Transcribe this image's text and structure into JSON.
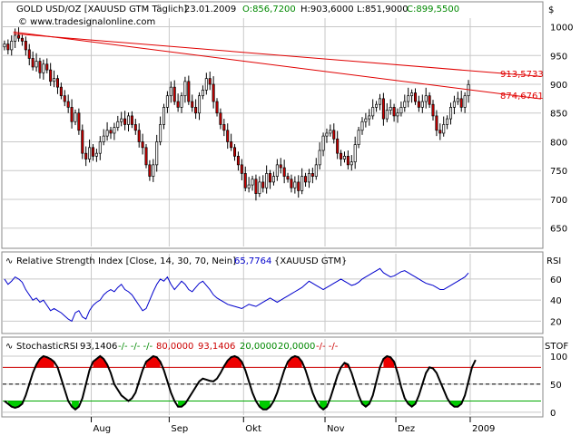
{
  "header": {
    "symbol": "GOLD USD/OZ [XAUUSD GTM  Täglich]",
    "date": "23.01.2009",
    "open": "O:856,7200",
    "high": "H:903,6000",
    "low": "L:851,9000",
    "close": "C:899,5500",
    "watermark": "© www.tradesignalonline.com",
    "currency": "$"
  },
  "colors": {
    "up": "#ffffff",
    "down": "#cc0000",
    "trendline": "#e00000",
    "rsi": "#0000cc",
    "stoch": "#000000",
    "overbought_fill": "#ee0000",
    "oversold_fill": "#00cc00",
    "open_text": "#008800",
    "close_text": "#008800",
    "grid": "#c8c8c8"
  },
  "x_axis": {
    "months": [
      {
        "label": "Aug",
        "day": 25
      },
      {
        "label": "Sep",
        "day": 47
      },
      {
        "label": "Okt",
        "day": 68
      },
      {
        "label": "Nov",
        "day": 91
      },
      {
        "label": "Dez",
        "day": 111
      },
      {
        "label": "2009",
        "day": 132
      }
    ]
  },
  "chart_data": [
    {
      "type": "candlestick",
      "series_name": "GOLD USD/OZ",
      "y_ticks": [
        650,
        700,
        750,
        800,
        850,
        900,
        950,
        1000
      ],
      "ylim": [
        618,
        1015
      ],
      "x_range": [
        0,
        152
      ],
      "trendlines": [
        {
          "label": "913,5733",
          "x0": 3,
          "y0": 988,
          "x1": 152,
          "y1": 913.57
        },
        {
          "label": "874,6761",
          "x0": 3,
          "y0": 991,
          "x1": 152,
          "y1": 874.68
        }
      ],
      "closes": [
        970,
        960,
        975,
        985,
        980,
        975,
        960,
        945,
        930,
        940,
        920,
        935,
        925,
        905,
        910,
        895,
        880,
        870,
        860,
        835,
        850,
        820,
        780,
        770,
        790,
        775,
        780,
        800,
        810,
        820,
        815,
        825,
        835,
        840,
        830,
        845,
        830,
        820,
        800,
        790,
        760,
        740,
        760,
        800,
        830,
        860,
        880,
        895,
        870,
        860,
        880,
        905,
        870,
        860,
        850,
        880,
        890,
        910,
        900,
        870,
        850,
        830,
        820,
        800,
        790,
        775,
        760,
        745,
        720,
        725,
        735,
        710,
        730,
        720,
        745,
        730,
        740,
        760,
        755,
        740,
        735,
        720,
        730,
        715,
        740,
        730,
        745,
        740,
        760,
        785,
        810,
        815,
        820,
        805,
        780,
        770,
        775,
        760,
        765,
        795,
        820,
        835,
        840,
        845,
        860,
        865,
        875,
        840,
        855,
        860,
        845,
        850,
        860,
        870,
        880,
        885,
        870,
        860,
        870,
        880,
        865,
        845,
        820,
        815,
        830,
        840,
        860,
        870,
        875,
        860,
        880,
        899.55
      ]
    },
    {
      "type": "line",
      "title": "Relative Strength Index [Close, 14, 30, 70, Nein]",
      "value": "65,7764",
      "source": "{XAUUSD GTM}",
      "y_ticks": [
        20,
        40,
        60
      ],
      "ylim": [
        10,
        72
      ],
      "values": [
        60,
        55,
        58,
        62,
        60,
        57,
        50,
        45,
        40,
        42,
        38,
        40,
        35,
        30,
        32,
        30,
        28,
        25,
        22,
        20,
        28,
        30,
        24,
        22,
        30,
        35,
        38,
        40,
        45,
        48,
        50,
        48,
        52,
        55,
        50,
        48,
        45,
        40,
        35,
        30,
        32,
        40,
        48,
        55,
        60,
        58,
        62,
        55,
        50,
        54,
        58,
        55,
        50,
        48,
        52,
        56,
        58,
        54,
        50,
        45,
        42,
        40,
        38,
        36,
        35,
        34,
        33,
        32,
        34,
        36,
        35,
        34,
        36,
        38,
        40,
        42,
        40,
        38,
        40,
        42,
        44,
        46,
        48,
        50,
        52,
        55,
        58,
        56,
        54,
        52,
        50,
        52,
        54,
        56,
        58,
        60,
        58,
        56,
        54,
        55,
        57,
        60,
        62,
        64,
        66,
        68,
        70,
        66,
        64,
        62,
        63,
        65,
        67,
        68,
        66,
        64,
        62,
        60,
        58,
        56,
        55,
        54,
        52,
        50,
        50,
        52,
        54,
        56,
        58,
        60,
        62,
        65.7764
      ]
    },
    {
      "type": "line",
      "title": "StochasticRSI",
      "value": "93,1406",
      "param_text": "-/- -/- -/-",
      "overbought_text": "80,0000",
      "overbought_value": "93,1406",
      "oversold_text": "20,0000",
      "oversold_value": "20,0000",
      "param_text_2": "-/- -/-",
      "y_ticks": [
        0,
        50,
        100
      ],
      "ylim": [
        -5,
        108
      ],
      "overbought": 80,
      "oversold": 20,
      "mid": 50,
      "values": [
        20,
        15,
        10,
        8,
        10,
        15,
        30,
        50,
        70,
        85,
        95,
        100,
        98,
        95,
        90,
        80,
        60,
        40,
        20,
        10,
        5,
        10,
        25,
        50,
        75,
        90,
        95,
        100,
        95,
        85,
        70,
        50,
        40,
        30,
        25,
        20,
        25,
        35,
        55,
        75,
        90,
        95,
        100,
        98,
        90,
        75,
        55,
        35,
        20,
        10,
        10,
        15,
        25,
        35,
        45,
        55,
        60,
        58,
        56,
        55,
        60,
        70,
        82,
        92,
        98,
        100,
        97,
        90,
        75,
        55,
        35,
        20,
        10,
        5,
        5,
        10,
        20,
        35,
        55,
        75,
        90,
        97,
        100,
        98,
        90,
        75,
        55,
        35,
        20,
        10,
        5,
        10,
        25,
        45,
        65,
        80,
        88,
        85,
        70,
        50,
        30,
        15,
        10,
        15,
        30,
        55,
        80,
        95,
        100,
        98,
        90,
        70,
        45,
        25,
        15,
        10,
        15,
        30,
        50,
        70,
        80,
        78,
        70,
        55,
        40,
        25,
        15,
        10,
        10,
        15,
        30,
        55,
        80,
        93.1406
      ]
    }
  ]
}
